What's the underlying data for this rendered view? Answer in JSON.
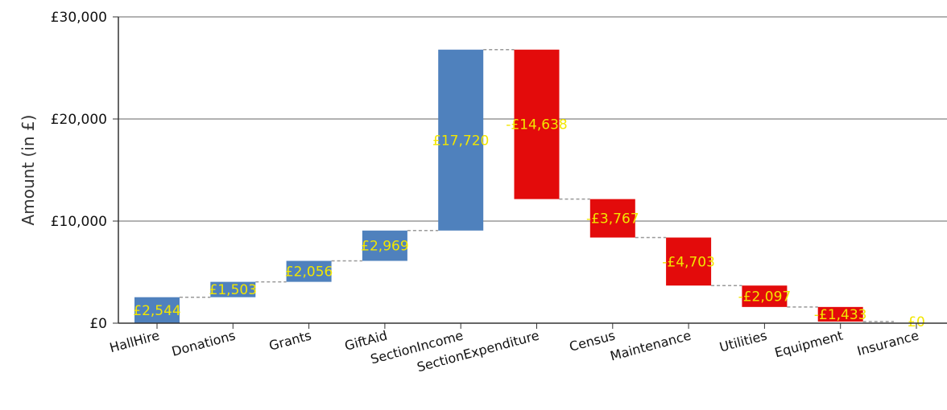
{
  "chart_data": {
    "type": "bar",
    "subtype": "waterfall",
    "title": "",
    "xlabel": "",
    "ylabel": "Amount (in £)",
    "ylim": [
      0,
      30000
    ],
    "yticks": [
      0,
      10000,
      20000,
      30000
    ],
    "ytick_labels": [
      "£0",
      "£10,000",
      "£20,000",
      "£30,000"
    ],
    "grid": true,
    "categories": [
      "HallHire",
      "Donations",
      "Grants",
      "GiftAid",
      "SectionIncome",
      "SectionExpenditure",
      "Census",
      "Maintenance",
      "Utilities",
      "Equipment",
      "Insurance"
    ],
    "bars": [
      {
        "category": "HallHire",
        "start": 0,
        "end": 2544,
        "label": "£2,544",
        "kind": "income"
      },
      {
        "category": "Donations",
        "start": 2544,
        "end": 4047,
        "label": "£1,503",
        "kind": "income"
      },
      {
        "category": "Grants",
        "start": 4047,
        "end": 6103,
        "label": "£2,056",
        "kind": "income"
      },
      {
        "category": "GiftAid",
        "start": 6103,
        "end": 9072,
        "label": "£2,969",
        "kind": "income"
      },
      {
        "category": "SectionIncome",
        "start": 9072,
        "end": 26792,
        "label": "£17,720",
        "kind": "income"
      },
      {
        "category": "SectionExpenditure",
        "start": 26792,
        "end": 12154,
        "label": "-£14,638",
        "kind": "expense"
      },
      {
        "category": "Census",
        "start": 12154,
        "end": 8387,
        "label": "-£3,767",
        "kind": "expense"
      },
      {
        "category": "Maintenance",
        "start": 8387,
        "end": 3684,
        "label": "-£4,703",
        "kind": "expense"
      },
      {
        "category": "Utilities",
        "start": 3684,
        "end": 1587,
        "label": "-£2,097",
        "kind": "expense"
      },
      {
        "category": "Equipment",
        "start": 1587,
        "end": 154,
        "label": "-£1,433",
        "kind": "expense"
      },
      {
        "category": "Insurance",
        "start": 154,
        "end": 154,
        "label": "£0",
        "kind": "expense"
      }
    ],
    "colors": {
      "income": "#4f81bd",
      "expense": "#e30b0b",
      "label": "#f2e600",
      "connector": "#999999",
      "axis": "#333333",
      "grid": "#666666"
    }
  }
}
